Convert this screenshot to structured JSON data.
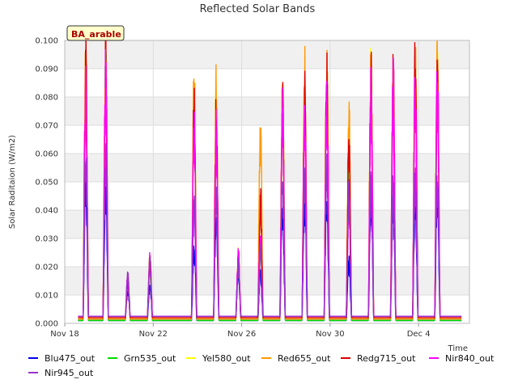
{
  "chart_data": {
    "type": "line",
    "title": "Reflected Solar Bands",
    "site_label": "BA_arable",
    "xlabel": "Time",
    "ylabel": "Solar Raditaion (W/m2)",
    "ylim": [
      0,
      0.1
    ],
    "xlim": [
      18,
      36.3
    ],
    "yticks": [
      0.0,
      0.01,
      0.02,
      0.03,
      0.04,
      0.05,
      0.06,
      0.07,
      0.08,
      0.09,
      0.1
    ],
    "ytick_labels": [
      "0.000",
      "0.010",
      "0.020",
      "0.030",
      "0.040",
      "0.050",
      "0.060",
      "0.070",
      "0.080",
      "0.090",
      "0.100"
    ],
    "xticks": [
      18,
      22,
      26,
      30,
      34
    ],
    "xtick_labels": [
      "Nov 18",
      "Nov 22",
      "Nov 26",
      "Nov 30",
      "Dec 4"
    ],
    "grid": true,
    "legend_position": "bottom",
    "day_centers": [
      18.95,
      19.85,
      20.85,
      21.85,
      23.85,
      24.85,
      25.85,
      26.85,
      27.85,
      28.85,
      29.85,
      30.85,
      31.85,
      32.85,
      33.85,
      34.85
    ],
    "series": [
      {
        "name": "Blu475_out",
        "color": "#0000ee",
        "baseline": 0.001,
        "peaks": [
          0.047,
          0.045,
          0.012,
          0.013,
          0.026,
          0.037,
          0.018,
          0.018,
          0.04,
          0.042,
          0.043,
          0.022,
          0.046,
          0.043,
          0.044,
          0.046
        ]
      },
      {
        "name": "Grn535_out",
        "color": "#00dd00",
        "baseline": 0.001,
        "peaks": [
          0.08,
          0.086,
          0.014,
          0.019,
          0.07,
          0.072,
          0.021,
          0.025,
          0.074,
          0.078,
          0.082,
          0.06,
          0.082,
          0.08,
          0.085,
          0.085
        ]
      },
      {
        "name": "Yel580_out",
        "color": "#ffff00",
        "baseline": 0.0015,
        "peaks": [
          0.085,
          0.09,
          0.015,
          0.02,
          0.075,
          0.075,
          0.022,
          0.04,
          0.076,
          0.08,
          0.083,
          0.065,
          0.085,
          0.083,
          0.088,
          0.088
        ]
      },
      {
        "name": "Red655_out",
        "color": "#ff9900",
        "baseline": 0.0015,
        "peaks": [
          0.094,
          0.096,
          0.015,
          0.021,
          0.082,
          0.08,
          0.023,
          0.068,
          0.079,
          0.085,
          0.087,
          0.072,
          0.09,
          0.087,
          0.09,
          0.09
        ]
      },
      {
        "name": "Redg715_out",
        "color": "#dd0000",
        "baseline": 0.002,
        "peaks": [
          0.088,
          0.092,
          0.015,
          0.021,
          0.073,
          0.072,
          0.022,
          0.042,
          0.075,
          0.081,
          0.086,
          0.065,
          0.083,
          0.085,
          0.09,
          0.091
        ]
      },
      {
        "name": "Nir840_out",
        "color": "#ff00ff",
        "baseline": 0.0025,
        "peaks": [
          0.083,
          0.087,
          0.016,
          0.022,
          0.068,
          0.067,
          0.024,
          0.03,
          0.073,
          0.077,
          0.081,
          0.043,
          0.08,
          0.082,
          0.083,
          0.085
        ]
      },
      {
        "name": "Nir945_out",
        "color": "#9933cc",
        "baseline": 0.0025,
        "peaks": [
          0.056,
          0.055,
          0.016,
          0.021,
          0.04,
          0.043,
          0.02,
          0.025,
          0.05,
          0.052,
          0.056,
          0.045,
          0.047,
          0.047,
          0.048,
          0.05
        ]
      }
    ]
  }
}
